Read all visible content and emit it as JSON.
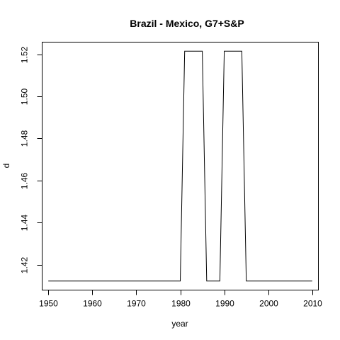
{
  "chart_data": {
    "type": "line",
    "title": "Brazil - Mexico, G7+S&P",
    "xlabel": "year",
    "ylabel": "d",
    "xlim": [
      1948.6,
      2011.4
    ],
    "ylim": [
      1.4079,
      1.5258
    ],
    "xticks": [
      1950,
      1960,
      1970,
      1980,
      1990,
      2000,
      2010
    ],
    "yticks": [
      1.42,
      1.44,
      1.46,
      1.48,
      1.5,
      1.52
    ],
    "ytick_labels": [
      "1.42",
      "1.44",
      "1.46",
      "1.48",
      "1.50",
      "1.52"
    ],
    "series": [
      {
        "x": [
          1950,
          1980,
          1981,
          1985,
          1986,
          1989,
          1990,
          1994,
          1995,
          2010
        ],
        "y": [
          1.4122,
          1.4122,
          1.5215,
          1.5215,
          1.4122,
          1.4122,
          1.5215,
          1.5215,
          1.4122,
          1.4122
        ]
      }
    ],
    "grid": false,
    "legend": "none"
  }
}
